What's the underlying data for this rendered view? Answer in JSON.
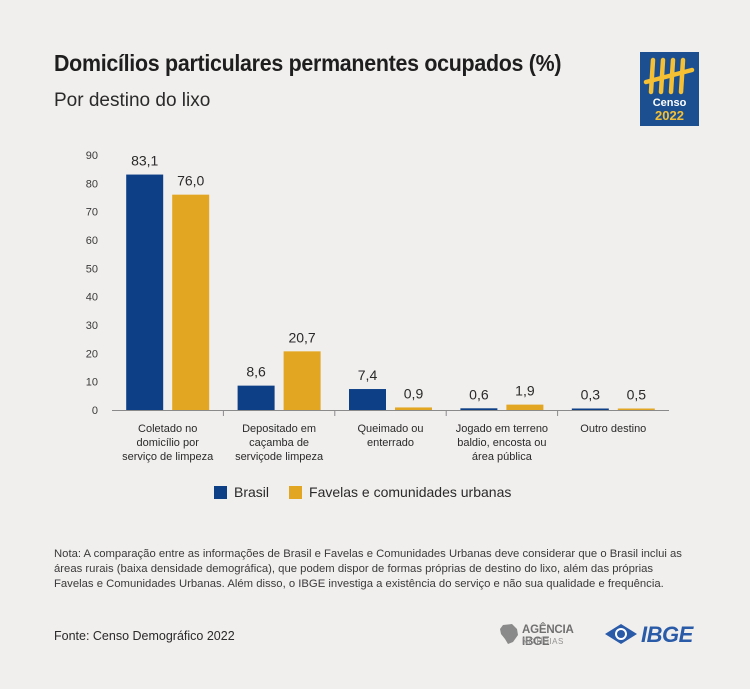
{
  "header": {
    "title": "Domicílios particulares permanentes ocupados (%)",
    "subtitle": "Por destino do lixo"
  },
  "logo": {
    "line1": "Censo",
    "line2": "2022",
    "background": "#1c4f8f",
    "accent": "#f5c034"
  },
  "chart_data": {
    "type": "bar",
    "categories": [
      [
        "Coletado no",
        "domicílio por",
        "serviço de limpeza"
      ],
      [
        "Depositado em",
        "caçamba de",
        "serviçode limpeza"
      ],
      [
        "Queimado ou",
        "enterrado"
      ],
      [
        "Jogado em terreno",
        "baldio, encosta ou",
        "área pública"
      ],
      [
        "Outro destino"
      ]
    ],
    "series": [
      {
        "name": "Brasil",
        "color": "#0d3f86",
        "values": [
          83.1,
          8.6,
          7.4,
          0.6,
          0.3
        ],
        "labels": [
          "83,1",
          "8,6",
          "7,4",
          "0,6",
          "0,3"
        ]
      },
      {
        "name": "Favelas e comunidades urbanas",
        "color": "#e2a622",
        "values": [
          76.0,
          20.7,
          0.9,
          1.9,
          0.5
        ],
        "labels": [
          "76,0",
          "20,7",
          "0,9",
          "1,9",
          "0,5"
        ]
      }
    ],
    "yticks": [
      "0",
      "10",
      "20",
      "30",
      "40",
      "50",
      "60",
      "70",
      "80",
      "90"
    ],
    "ylim": [
      0,
      90
    ],
    "grid": false,
    "legend": "bottom"
  },
  "note": "Nota: A comparação entre as informações de Brasil e Favelas e Comunidades Urbanas deve considerar que o Brasil inclui as áreas rurais (baixa densidade demográfica), que podem dispor de formas próprias de destino do lixo, além das próprias Favelas e Comunidades Urbanas. Além disso, o IBGE investiga a existência do serviço e não sua qualidade e frequência.",
  "source": "Fonte: Censo Demográfico 2022",
  "footer": {
    "agencia_name": "AGÊNCIA IBGE",
    "agencia_sub": "NOTÍCIAS",
    "ibge": "IBGE"
  }
}
